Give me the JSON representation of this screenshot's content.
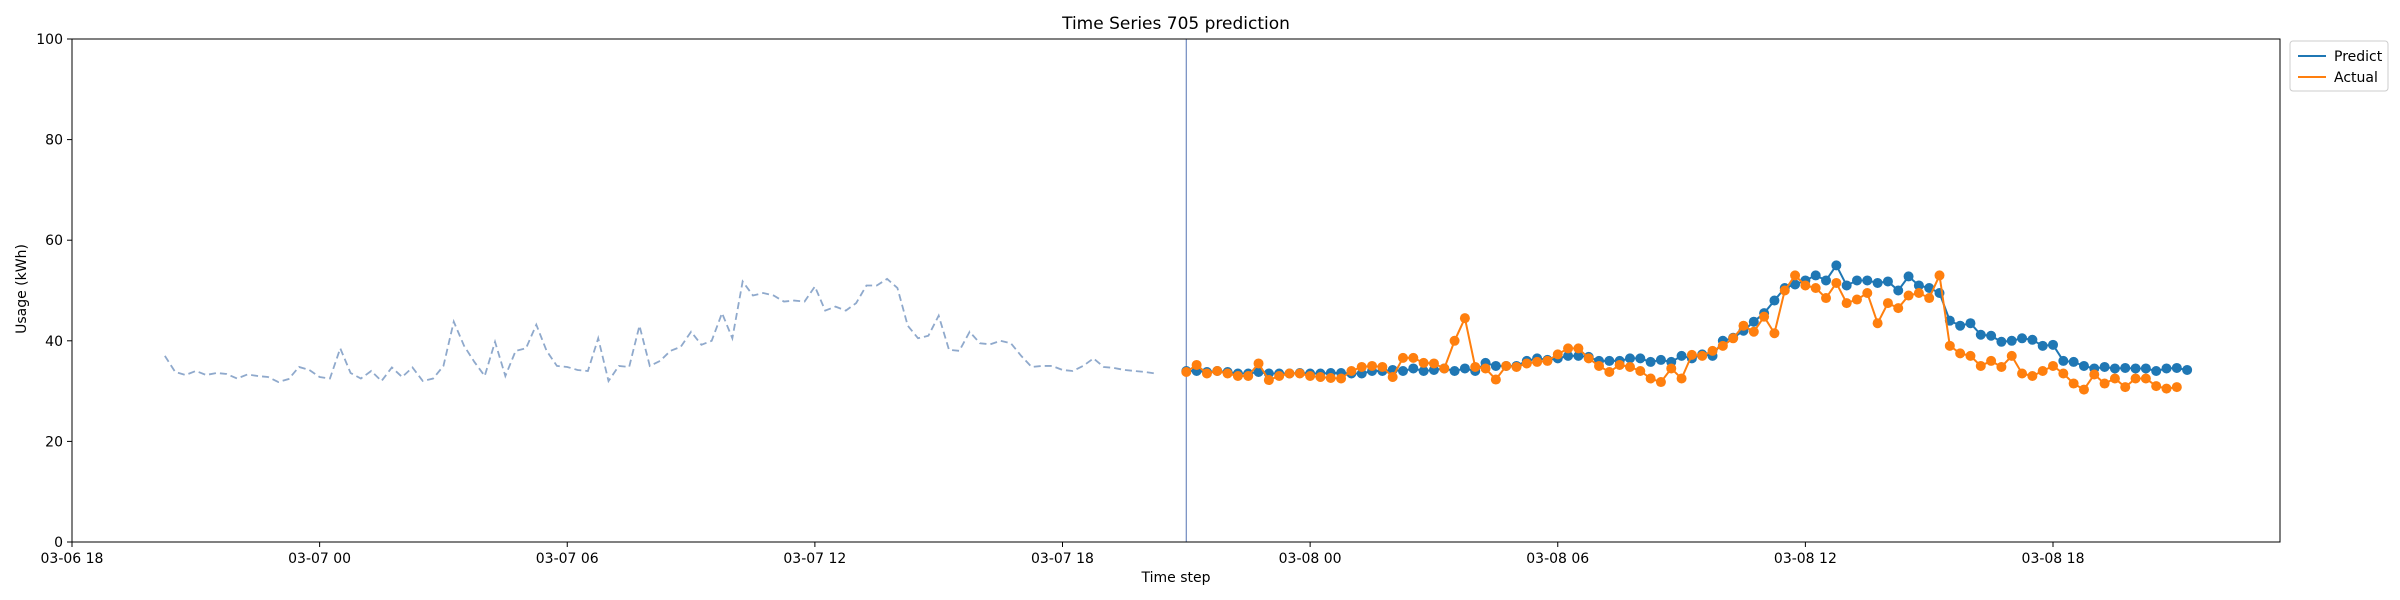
{
  "chart_data": {
    "type": "line",
    "title": "Time Series 705 prediction",
    "xlabel": "Time step",
    "ylabel": "Usage (kWh)",
    "ylim": [
      0,
      100
    ],
    "yticks": [
      0,
      20,
      40,
      60,
      80,
      100
    ],
    "xlim": [
      "2024-03-06 18:00",
      "2024-03-08 23:30"
    ],
    "xticks": [
      {
        "t": "2024-03-06 18:00",
        "label": "03-06 18"
      },
      {
        "t": "2024-03-07 00:00",
        "label": "03-07 00"
      },
      {
        "t": "2024-03-07 06:00",
        "label": "03-07 06"
      },
      {
        "t": "2024-03-07 12:00",
        "label": "03-07 12"
      },
      {
        "t": "2024-03-07 18:00",
        "label": "03-07 18"
      },
      {
        "t": "2024-03-08 00:00",
        "label": "03-08 00"
      },
      {
        "t": "2024-03-08 06:00",
        "label": "03-08 06"
      },
      {
        "t": "2024-03-08 12:00",
        "label": "03-08 12"
      },
      {
        "t": "2024-03-08 18:00",
        "label": "03-08 18"
      }
    ],
    "legend_position": "outside top-right",
    "forecast_start": "2024-03-07 21:00",
    "history": {
      "start": "2024-03-06 20:15",
      "step_minutes": 15,
      "color": "#8fa9cc",
      "values": [
        37.0,
        33.8,
        33.2,
        34.0,
        33.2,
        33.6,
        33.4,
        32.5,
        33.3,
        33.0,
        32.8,
        31.8,
        32.4,
        34.8,
        34.2,
        32.8,
        32.5,
        38.5,
        33.6,
        32.5,
        34.0,
        32.0,
        34.7,
        32.8,
        34.7,
        32.0,
        32.5,
        35.0,
        43.8,
        39.0,
        35.8,
        33.0,
        39.8,
        33.0,
        38.0,
        38.5,
        43.2,
        38.0,
        35.0,
        34.8,
        34.2,
        34.0,
        40.5,
        32.0,
        35.0,
        34.8,
        43.0,
        35.0,
        36.0,
        38.0,
        38.8,
        41.8,
        39.2,
        40.0,
        45.5,
        40.5,
        51.8,
        49.0,
        49.5,
        49.0,
        47.8,
        48.0,
        47.8,
        50.8,
        46.0,
        46.8,
        46.0,
        47.5,
        51.0,
        51.0,
        52.3,
        50.5,
        43.0,
        40.5,
        41.0,
        45.0,
        38.2,
        38.0,
        41.8,
        39.5,
        39.3,
        40.0,
        39.5,
        37.0,
        34.8,
        35.0,
        35.0,
        34.2,
        34.0,
        35.0,
        36.5,
        34.8,
        34.6,
        34.2,
        34.0,
        33.8,
        33.5
      ]
    },
    "forecast_start_index": 96,
    "series": [
      {
        "name": "Predict",
        "color": "#1f77b4",
        "start": "2024-03-07 21:00",
        "step_minutes": 15,
        "values": [
          34.0,
          34.0,
          33.8,
          34.0,
          33.8,
          33.5,
          33.5,
          33.8,
          33.5,
          33.5,
          33.5,
          33.6,
          33.5,
          33.5,
          33.6,
          33.6,
          33.5,
          33.5,
          34.0,
          34.0,
          34.2,
          34.0,
          34.5,
          34.0,
          34.2,
          34.5,
          34.0,
          34.5,
          34.0,
          35.6,
          35.0,
          35.0,
          35.0,
          36.0,
          36.5,
          36.2,
          36.5,
          37.0,
          37.0,
          36.8,
          36.0,
          36.0,
          36.0,
          36.5,
          36.5,
          35.8,
          36.2,
          35.8,
          37.0,
          36.5,
          37.3,
          37.0,
          40.0,
          40.6,
          42.0,
          43.8,
          45.5,
          48.0,
          50.5,
          51.2,
          52.0,
          53.0,
          52.0,
          55.0,
          51.0,
          52.0,
          52.0,
          51.5,
          51.8,
          50.0,
          52.8,
          51.0,
          50.5,
          49.5,
          44.0,
          43.0,
          43.5,
          41.2,
          41.0,
          39.8,
          40.0,
          40.5,
          40.2,
          39.0,
          39.2,
          36.0,
          35.8,
          35.0,
          34.5,
          34.8,
          34.5,
          34.6,
          34.5,
          34.5,
          34.0,
          34.5,
          34.6,
          34.2
        ]
      },
      {
        "name": "Actual",
        "color": "#ff7f0e",
        "start": "2024-03-07 21:00",
        "step_minutes": 15,
        "values": [
          33.8,
          35.2,
          33.5,
          34.0,
          33.5,
          33.0,
          33.0,
          35.5,
          32.2,
          33.0,
          33.5,
          33.5,
          33.0,
          32.8,
          32.6,
          32.5,
          34.0,
          34.8,
          35.0,
          34.8,
          32.8,
          36.6,
          36.6,
          35.6,
          35.5,
          34.5,
          40.0,
          44.5,
          34.8,
          34.5,
          32.3,
          35.0,
          34.8,
          35.5,
          35.8,
          36.0,
          37.3,
          38.5,
          38.5,
          36.5,
          35.0,
          33.8,
          35.2,
          34.8,
          34.0,
          32.5,
          31.8,
          34.5,
          32.5,
          37.2,
          37.0,
          38.0,
          39.0,
          40.5,
          43.0,
          41.8,
          44.8,
          41.5,
          50.0,
          53.0,
          51.0,
          50.5,
          48.5,
          51.5,
          47.5,
          48.2,
          49.5,
          43.5,
          47.5,
          46.5,
          49.0,
          49.5,
          48.5,
          53.0,
          39.0,
          37.5,
          37.0,
          35.0,
          36.0,
          34.8,
          37.0,
          33.5,
          33.0,
          34.0,
          35.0,
          33.5,
          31.5,
          30.3,
          33.3,
          31.5,
          32.5,
          30.8,
          32.5,
          32.5,
          31.0,
          30.5,
          30.8
        ]
      }
    ]
  }
}
